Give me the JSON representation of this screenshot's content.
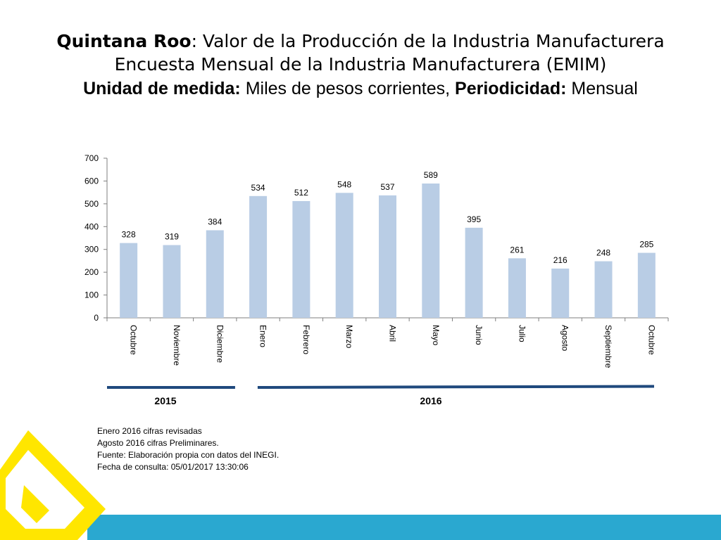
{
  "title": {
    "region": "Quintana Roo",
    "line1_rest": ": Valor de la Producción de la Industria Manufacturera",
    "line2": "Encuesta Mensual de la Industria Manufacturera (EMIM)",
    "unit_label": "Unidad de medida:",
    "unit_value": " Miles de pesos corrientes, ",
    "period_label": "Periodicidad:",
    "period_value": " Mensual"
  },
  "chart_data": {
    "type": "bar",
    "categories": [
      "Octubre",
      "Noviembre",
      "Diciembre",
      "Enero",
      "Febrero",
      "Marzo",
      "Abril",
      "Mayo",
      "Junio",
      "Julio",
      "Agosto",
      "Septiembre",
      "Octubre"
    ],
    "values": [
      328,
      319,
      384,
      534,
      512,
      548,
      537,
      589,
      395,
      261,
      216,
      248,
      285
    ],
    "ylim": [
      0,
      700
    ],
    "yticks": [
      0,
      100,
      200,
      300,
      400,
      500,
      600,
      700
    ],
    "grid": false,
    "legend": "none",
    "bar_color": "#b9cde5",
    "year_groups": [
      {
        "label": "2015",
        "first": 0,
        "last": 2
      },
      {
        "label": "2016",
        "first": 3,
        "last": 12
      }
    ]
  },
  "notes": [
    "Enero 2016 cifras revisadas",
    "Agosto 2016 cifras Preliminares.",
    "Fuente: Elaboración propia con datos del INEGI.",
    "Fecha de consulta: 05/01/2017  13:30:06"
  ],
  "colors": {
    "axis": "#7f7f7f",
    "year_bar": "#1f497d",
    "footer_band": "#2aa8d0",
    "logo": "#ffe600"
  }
}
